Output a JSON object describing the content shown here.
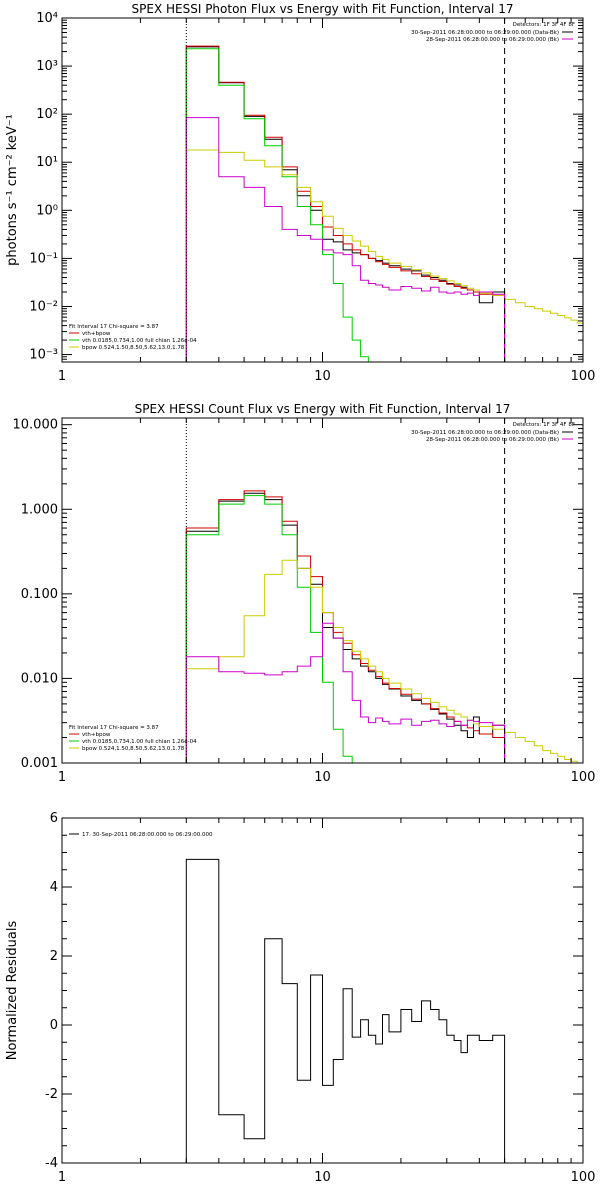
{
  "colors": {
    "data": "#000000",
    "total": "#d00000",
    "vth": "#00cc00",
    "bpow": "#cccc00",
    "bk": "#cc00cc"
  },
  "chart_data": [
    {
      "type": "line",
      "title": "SPEX HESSI Photon Flux vs Energy with Fit Function, Interval 17",
      "ylabel": "photons s⁻¹ cm⁻² keV⁻¹",
      "xlabel": "",
      "xscale": "log",
      "yscale": "log",
      "xlim": [
        1,
        100
      ],
      "ylim": [
        0.0007,
        10000
      ],
      "xticks": [
        1,
        10,
        100
      ],
      "xticklabels": [
        "1",
        "10",
        "100"
      ],
      "yticks": [
        0.001,
        0.01,
        0.1,
        1,
        10,
        100,
        1000,
        10000
      ],
      "yticklabels": [
        "10⁻³",
        "10⁻²",
        "10⁻¹",
        "10⁰",
        "10¹",
        "10²",
        "10³",
        "10⁴"
      ],
      "vlines": [
        {
          "x": 3,
          "style": "dotted"
        },
        {
          "x": 50,
          "style": "dashed"
        }
      ],
      "edges": [
        3,
        4,
        5,
        6,
        7,
        8,
        9,
        10,
        11,
        12,
        13,
        14,
        15,
        16,
        17,
        18,
        20,
        22,
        24,
        26,
        28,
        30,
        32,
        34,
        36,
        38,
        40,
        45,
        50,
        55,
        60,
        65,
        70,
        75,
        80,
        85,
        90,
        95,
        100
      ],
      "legend_right": {
        "title": "Detectors: 1F 3F 4F 8F",
        "entries": [
          {
            "label": "30-Sep-2011 06:28:00.000 to 06:29:00.000 (Data-Bk)",
            "color": "#000000"
          },
          {
            "label": "28-Sep-2011 06:28:00.000 to 06:29:00.000 (Bk)",
            "color": "#cc00cc"
          }
        ]
      },
      "legend_left": {
        "title": "Fit Interval 17   Chi-square = 3.87",
        "entries": [
          {
            "label": "vth+bpow",
            "color": "#d00000"
          },
          {
            "label": "vth 0.0185,0.734,1.00  full chian 1.26e-04",
            "color": "#00cc00"
          },
          {
            "label": "bpow 0.524,1.50,8.50,5.62,13.0,1.78",
            "color": "#cccc00"
          }
        ]
      },
      "series": [
        {
          "key": "data",
          "color": "#000000",
          "values": [
            2500,
            450,
            90,
            30,
            7,
            2,
            1,
            0.25,
            0.22,
            0.15,
            0.13,
            0.12,
            0.1,
            0.09,
            0.08,
            0.07,
            0.06,
            0.055,
            0.045,
            0.04,
            0.035,
            0.03,
            0.028,
            0.025,
            0.022,
            0.02,
            0.012,
            0.02
          ]
        },
        {
          "key": "total",
          "color": "#d00000",
          "values": [
            2600,
            460,
            95,
            33,
            8,
            2.5,
            1.2,
            0.45,
            0.3,
            0.2,
            0.15,
            0.12,
            0.1,
            0.085,
            0.075,
            0.065,
            0.055,
            0.048,
            0.042,
            0.037,
            0.033,
            0.029,
            0.026,
            0.024,
            0.022,
            0.02,
            0.018,
            0.017
          ]
        },
        {
          "key": "vth",
          "color": "#00cc00",
          "values": [
            2300,
            400,
            80,
            22,
            5,
            1.2,
            0.5,
            0.12,
            0.03,
            0.006,
            0.002,
            0.0009,
            0.0005
          ]
        },
        {
          "key": "bpow",
          "color": "#cccc00",
          "values": [
            18,
            16,
            11,
            8,
            5.5,
            3,
            1.5,
            0.75,
            0.42,
            0.3,
            0.23,
            0.18,
            0.14,
            0.11,
            0.095,
            0.08,
            0.068,
            0.058,
            0.05,
            0.043,
            0.038,
            0.034,
            0.03,
            0.027,
            0.024,
            0.022,
            0.019,
            0.017,
            0.014,
            0.012,
            0.01,
            0.009,
            0.008,
            0.0072,
            0.0065,
            0.0058,
            0.0052,
            0.0045
          ]
        },
        {
          "key": "bk",
          "color": "#cc00cc",
          "values": [
            85,
            5,
            3,
            1.2,
            0.4,
            0.3,
            0.25,
            0.15,
            0.13,
            0.12,
            0.07,
            0.035,
            0.03,
            0.028,
            0.025,
            0.022,
            0.026,
            0.024,
            0.021,
            0.025,
            0.02,
            0.019,
            0.02,
            0.018,
            0.019,
            0.017,
            0.02,
            0.018
          ]
        }
      ]
    },
    {
      "type": "line",
      "title": "SPEX HESSI Count Flux vs Energy with Fit Function, Interval 17",
      "ylabel": "",
      "xlabel": "",
      "xscale": "log",
      "yscale": "log",
      "xlim": [
        1,
        100
      ],
      "ylim": [
        0.001,
        12
      ],
      "xticks": [
        1,
        10,
        100
      ],
      "xticklabels": [
        "1",
        "10",
        "100"
      ],
      "yticks": [
        0.001,
        0.01,
        0.1,
        1,
        10
      ],
      "yticklabels": [
        "0.001",
        "0.010",
        "0.100",
        "1.000",
        "10.000"
      ],
      "vlines": [
        {
          "x": 3,
          "style": "dotted"
        },
        {
          "x": 50,
          "style": "dashed"
        }
      ],
      "edges": [
        3,
        4,
        5,
        6,
        7,
        8,
        9,
        10,
        11,
        12,
        13,
        14,
        15,
        16,
        17,
        18,
        20,
        22,
        24,
        26,
        28,
        30,
        32,
        34,
        36,
        38,
        40,
        45,
        50,
        55,
        60,
        65,
        70,
        75,
        80,
        85,
        90,
        95,
        100
      ],
      "legend_right": {
        "title": "Detectors: 1F 3F 4F 8F",
        "entries": [
          {
            "label": "30-Sep-2011 06:28:00.000 to 06:29:00.000 (Data-Bk)",
            "color": "#000000"
          },
          {
            "label": "28-Sep-2011 06:28:00.000 to 06:29:00.000 (Bk)",
            "color": "#cc00cc"
          }
        ]
      },
      "legend_left": {
        "title": "Fit Interval 17   Chi-square = 3.87",
        "entries": [
          {
            "label": "vth+bpow",
            "color": "#d00000"
          },
          {
            "label": "vth 0.0185,0.734,1.00  full chian 1.26e-04",
            "color": "#00cc00"
          },
          {
            "label": "bpow 0.524,1.50,8.50,5.62,13.0,1.78",
            "color": "#cccc00"
          }
        ]
      },
      "series": [
        {
          "key": "data",
          "color": "#000000",
          "values": [
            0.55,
            1.25,
            1.55,
            1.3,
            0.65,
            0.2,
            0.13,
            0.04,
            0.03,
            0.022,
            0.017,
            0.014,
            0.012,
            0.01,
            0.0085,
            0.0075,
            0.0062,
            0.0055,
            0.005,
            0.0043,
            0.0038,
            0.0033,
            0.0028,
            0.0024,
            0.002,
            0.0035,
            0.0022,
            0.0028
          ]
        },
        {
          "key": "total",
          "color": "#d00000",
          "values": [
            0.6,
            1.3,
            1.65,
            1.4,
            0.72,
            0.28,
            0.16,
            0.06,
            0.035,
            0.026,
            0.019,
            0.015,
            0.0125,
            0.0105,
            0.0088,
            0.0076,
            0.0065,
            0.0057,
            0.005,
            0.0044,
            0.0039,
            0.0035,
            0.0031,
            0.0028,
            0.0026,
            0.0024,
            0.0022,
            0.002
          ]
        },
        {
          "key": "vth",
          "color": "#00cc00",
          "values": [
            0.5,
            1.15,
            1.45,
            1.15,
            0.5,
            0.12,
            0.035,
            0.009,
            0.0025,
            0.0012,
            0.001
          ]
        },
        {
          "key": "bpow",
          "color": "#cccc00",
          "values": [
            0.013,
            0.018,
            0.055,
            0.17,
            0.25,
            0.2,
            0.12,
            0.06,
            0.04,
            0.028,
            0.021,
            0.017,
            0.014,
            0.012,
            0.01,
            0.0088,
            0.0075,
            0.0066,
            0.0058,
            0.0052,
            0.0046,
            0.0042,
            0.0038,
            0.0035,
            0.0032,
            0.0029,
            0.0027,
            0.0025,
            0.0023,
            0.002,
            0.0018,
            0.0016,
            0.0014,
            0.0013,
            0.0012,
            0.0011,
            0.00105,
            0.001
          ]
        },
        {
          "key": "bk",
          "color": "#cc00cc",
          "values": [
            0.018,
            0.012,
            0.0115,
            0.011,
            0.012,
            0.014,
            0.018,
            0.045,
            0.03,
            0.012,
            0.0055,
            0.0035,
            0.003,
            0.0034,
            0.0031,
            0.0029,
            0.0033,
            0.0028,
            0.0031,
            0.0032,
            0.0029,
            0.0027,
            0.0031,
            0.0028,
            0.0032,
            0.0031,
            0.003,
            0.0028
          ]
        }
      ]
    },
    {
      "type": "line",
      "title": "",
      "ylabel": "Normalized Residuals",
      "xlabel": "",
      "xscale": "log",
      "yscale": "linear",
      "xlim": [
        1,
        100
      ],
      "ylim": [
        -4,
        6
      ],
      "xticks": [
        1,
        10,
        100
      ],
      "xticklabels": [
        "1",
        "10",
        "100"
      ],
      "yticks": [
        -4,
        -2,
        0,
        2,
        4,
        6
      ],
      "yticklabels": [
        "-4",
        "-2",
        "0",
        "2",
        "4",
        "6"
      ],
      "vlines": [],
      "edges": [
        3,
        4,
        5,
        6,
        7,
        8,
        9,
        10,
        11,
        12,
        13,
        14,
        15,
        16,
        17,
        18,
        20,
        22,
        24,
        26,
        28,
        30,
        32,
        34,
        36,
        38,
        40,
        45,
        50
      ],
      "legend_left": {
        "title": "",
        "entries": [
          {
            "label": "17. 30-Sep-2011 06:28:00.000 to 06:29:00.000",
            "color": "#000000"
          }
        ]
      },
      "series": [
        {
          "key": "residuals",
          "color": "#000000",
          "drop_to_min": true,
          "values": [
            4.8,
            -2.6,
            -3.3,
            2.5,
            1.2,
            -1.6,
            1.45,
            -1.75,
            -1.0,
            1.05,
            -0.35,
            0.15,
            -0.3,
            -0.55,
            0.3,
            -0.2,
            0.45,
            0.1,
            0.7,
            0.45,
            0.15,
            -0.3,
            -0.45,
            -0.8,
            -0.3,
            -0.3,
            -0.45,
            -0.3
          ]
        }
      ]
    }
  ]
}
